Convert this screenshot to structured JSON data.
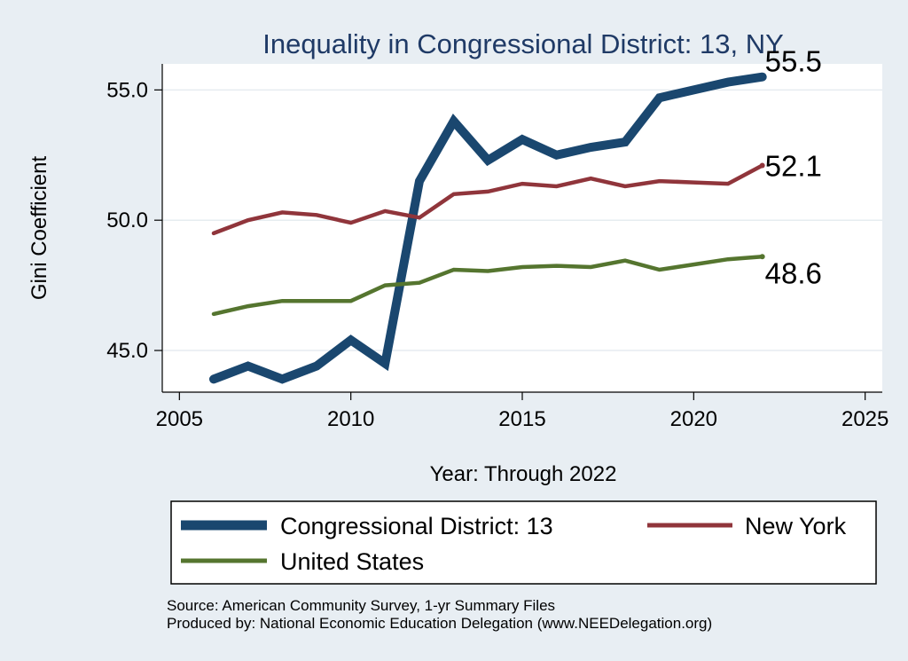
{
  "chart_data": {
    "type": "line",
    "title": "Inequality in Congressional District:  13, NY",
    "xlabel": "Year: Through 2022",
    "ylabel": "Gini Coefficient",
    "xlim": [
      2004.5,
      2025.5
    ],
    "ylim": [
      43.4,
      56.0
    ],
    "xticks": [
      2005,
      2010,
      2015,
      2020,
      2025
    ],
    "yticks": [
      45.0,
      50.0,
      55.0
    ],
    "ytick_labels": [
      "45.0",
      "50.0",
      "55.0"
    ],
    "grid": true,
    "legend_position": "bottom",
    "series": [
      {
        "name": "Congressional District:  13",
        "color": "#1a476f",
        "x": [
          2006,
          2007,
          2008,
          2009,
          2010,
          2011,
          2012,
          2013,
          2014,
          2015,
          2016,
          2017,
          2018,
          2019,
          2020,
          2021,
          2022
        ],
        "values": [
          43.9,
          44.4,
          43.9,
          44.4,
          45.4,
          44.5,
          51.5,
          53.8,
          52.3,
          53.1,
          52.5,
          52.8,
          53.0,
          54.7,
          55.0,
          55.3,
          55.5
        ],
        "end_label": "55.5"
      },
      {
        "name": "New York",
        "color": "#90353b",
        "x": [
          2006,
          2007,
          2008,
          2009,
          2010,
          2011,
          2012,
          2013,
          2014,
          2015,
          2016,
          2017,
          2018,
          2019,
          2020,
          2021,
          2022
        ],
        "values": [
          49.5,
          50.0,
          50.3,
          50.2,
          49.9,
          50.35,
          50.1,
          51.0,
          51.1,
          51.4,
          51.3,
          51.6,
          51.3,
          51.5,
          51.45,
          51.4,
          52.1
        ],
        "end_label": "52.1"
      },
      {
        "name": "United States",
        "color": "#55752f",
        "x": [
          2006,
          2007,
          2008,
          2009,
          2010,
          2011,
          2012,
          2013,
          2014,
          2015,
          2016,
          2017,
          2018,
          2019,
          2020,
          2021,
          2022
        ],
        "values": [
          46.4,
          46.7,
          46.9,
          46.9,
          46.9,
          47.5,
          47.6,
          48.1,
          48.05,
          48.2,
          48.25,
          48.2,
          48.45,
          48.1,
          48.3,
          48.5,
          48.6
        ],
        "end_label": "48.6"
      }
    ],
    "notes": [
      "Source: American Community Survey, 1-yr Summary Files",
      "Produced by: National Economic Education Delegation (www.NEEDelegation.org)"
    ]
  }
}
